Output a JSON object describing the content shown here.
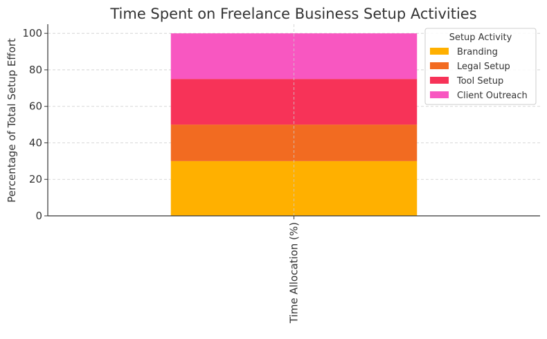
{
  "chart_data": {
    "type": "bar",
    "stacked": true,
    "title": "Time Spent on Freelance Business Setup Activities",
    "xlabel": "",
    "ylabel": "Percentage of Total Setup Effort",
    "categories": [
      "Time Allocation (%)"
    ],
    "series": [
      {
        "name": "Branding",
        "values": [
          30
        ],
        "color": "#FFB000"
      },
      {
        "name": "Legal Setup",
        "values": [
          20
        ],
        "color": "#F26B21"
      },
      {
        "name": "Tool Setup",
        "values": [
          25
        ],
        "color": "#F73358"
      },
      {
        "name": "Client Outreach",
        "values": [
          25
        ],
        "color": "#F857C1"
      }
    ],
    "ylim": [
      0,
      105
    ],
    "yticks": [
      0,
      20,
      40,
      60,
      80,
      100
    ],
    "grid": true,
    "legend": {
      "title": "Setup Activity",
      "placement": "top-right"
    }
  }
}
